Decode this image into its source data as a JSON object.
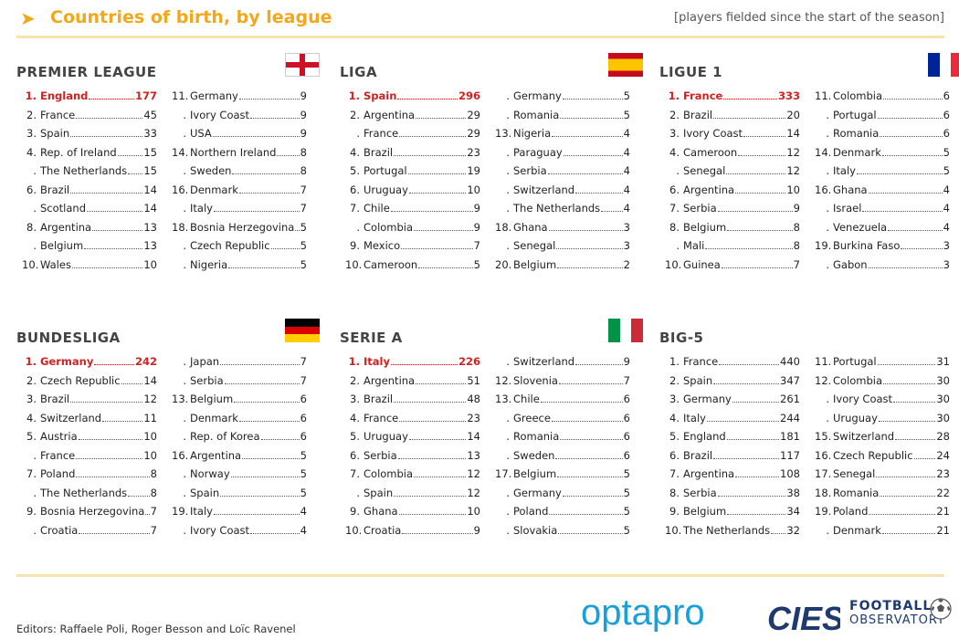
{
  "header": {
    "title": "Countries of birth, by league",
    "subtitle": "[players fielded since the start of the season]"
  },
  "footer": {
    "editors": "Editors: Raffaele Poli, Roger Besson and Loïc Ravenel",
    "opta_logo": "optapro",
    "cies_logo": "CIES",
    "fo_line1": "FOOTBALL",
    "fo_line2": "OBSERVATORY"
  },
  "chart_data": [
    {
      "type": "table",
      "title": "PREMIER LEAGUE",
      "flag": "england",
      "rows": [
        {
          "rank": "1.",
          "country": "England",
          "value": 177,
          "highlight": true
        },
        {
          "rank": "2.",
          "country": "France",
          "value": 45
        },
        {
          "rank": "3.",
          "country": "Spain",
          "value": 33
        },
        {
          "rank": "4.",
          "country": "Rep. of Ireland",
          "value": 15
        },
        {
          "rank": ".",
          "country": "The Netherlands",
          "value": 15
        },
        {
          "rank": "6.",
          "country": "Brazil",
          "value": 14
        },
        {
          "rank": ".",
          "country": "Scotland",
          "value": 14
        },
        {
          "rank": "8.",
          "country": "Argentina",
          "value": 13
        },
        {
          "rank": ".",
          "country": "Belgium",
          "value": 13
        },
        {
          "rank": "10.",
          "country": "Wales",
          "value": 10
        },
        {
          "rank": "11.",
          "country": "Germany",
          "value": 9
        },
        {
          "rank": ".",
          "country": "Ivory Coast",
          "value": 9
        },
        {
          "rank": ".",
          "country": "USA",
          "value": 9
        },
        {
          "rank": "14.",
          "country": "Northern Ireland",
          "value": 8
        },
        {
          "rank": ".",
          "country": "Sweden",
          "value": 8
        },
        {
          "rank": "16.",
          "country": "Denmark",
          "value": 7
        },
        {
          "rank": ".",
          "country": "Italy",
          "value": 7
        },
        {
          "rank": "18.",
          "country": "Bosnia Herzegovina",
          "value": 5
        },
        {
          "rank": ".",
          "country": "Czech Republic",
          "value": 5
        },
        {
          "rank": ".",
          "country": "Nigeria",
          "value": 5
        }
      ]
    },
    {
      "type": "table",
      "title": "LIGA",
      "flag": "spain",
      "rows": [
        {
          "rank": "1.",
          "country": "Spain",
          "value": 296,
          "highlight": true
        },
        {
          "rank": "2.",
          "country": "Argentina",
          "value": 29
        },
        {
          "rank": ".",
          "country": "France",
          "value": 29
        },
        {
          "rank": "4.",
          "country": "Brazil",
          "value": 23
        },
        {
          "rank": "5.",
          "country": "Portugal",
          "value": 19
        },
        {
          "rank": "6.",
          "country": "Uruguay",
          "value": 10
        },
        {
          "rank": "7.",
          "country": "Chile",
          "value": 9
        },
        {
          "rank": ".",
          "country": "Colombia",
          "value": 9
        },
        {
          "rank": "9.",
          "country": "Mexico",
          "value": 7
        },
        {
          "rank": "10.",
          "country": "Cameroon",
          "value": 5
        },
        {
          "rank": ".",
          "country": "Germany",
          "value": 5
        },
        {
          "rank": ".",
          "country": "Romania",
          "value": 5
        },
        {
          "rank": "13.",
          "country": "Nigeria",
          "value": 4
        },
        {
          "rank": ".",
          "country": "Paraguay",
          "value": 4
        },
        {
          "rank": ".",
          "country": "Serbia",
          "value": 4
        },
        {
          "rank": ".",
          "country": "Switzerland",
          "value": 4
        },
        {
          "rank": ".",
          "country": "The Netherlands",
          "value": 4
        },
        {
          "rank": "18.",
          "country": "Ghana",
          "value": 3
        },
        {
          "rank": ".",
          "country": "Senegal",
          "value": 3
        },
        {
          "rank": "20.",
          "country": "Belgium",
          "value": 2
        }
      ]
    },
    {
      "type": "table",
      "title": "LIGUE 1",
      "flag": "france",
      "rows": [
        {
          "rank": "1.",
          "country": "France",
          "value": 333,
          "highlight": true
        },
        {
          "rank": "2.",
          "country": "Brazil",
          "value": 20
        },
        {
          "rank": "3.",
          "country": "Ivory Coast",
          "value": 14
        },
        {
          "rank": "4.",
          "country": "Cameroon",
          "value": 12
        },
        {
          "rank": ".",
          "country": "Senegal",
          "value": 12
        },
        {
          "rank": "6.",
          "country": "Argentina",
          "value": 10
        },
        {
          "rank": "7.",
          "country": "Serbia",
          "value": 9
        },
        {
          "rank": "8.",
          "country": "Belgium",
          "value": 8
        },
        {
          "rank": ".",
          "country": "Mali",
          "value": 8
        },
        {
          "rank": "10.",
          "country": "Guinea",
          "value": 7
        },
        {
          "rank": "11.",
          "country": "Colombia",
          "value": 6
        },
        {
          "rank": ".",
          "country": "Portugal",
          "value": 6
        },
        {
          "rank": ".",
          "country": "Romania",
          "value": 6
        },
        {
          "rank": "14.",
          "country": "Denmark",
          "value": 5
        },
        {
          "rank": ".",
          "country": "Italy",
          "value": 5
        },
        {
          "rank": "16.",
          "country": "Ghana",
          "value": 4
        },
        {
          "rank": ".",
          "country": "Israel",
          "value": 4
        },
        {
          "rank": ".",
          "country": "Venezuela",
          "value": 4
        },
        {
          "rank": "19.",
          "country": "Burkina Faso",
          "value": 3
        },
        {
          "rank": ".",
          "country": "Gabon",
          "value": 3
        }
      ]
    },
    {
      "type": "table",
      "title": "BUNDESLIGA",
      "flag": "germany",
      "rows": [
        {
          "rank": "1.",
          "country": "Germany",
          "value": 242,
          "highlight": true
        },
        {
          "rank": "2.",
          "country": "Czech Republic",
          "value": 14
        },
        {
          "rank": "3.",
          "country": "Brazil",
          "value": 12
        },
        {
          "rank": "4.",
          "country": "Switzerland",
          "value": 11
        },
        {
          "rank": "5.",
          "country": "Austria",
          "value": 10
        },
        {
          "rank": ".",
          "country": "France",
          "value": 10
        },
        {
          "rank": "7.",
          "country": "Poland",
          "value": 8
        },
        {
          "rank": ".",
          "country": "The Netherlands",
          "value": 8
        },
        {
          "rank": "9.",
          "country": "Bosnia Herzegovina",
          "value": 7
        },
        {
          "rank": ".",
          "country": "Croatia",
          "value": 7
        },
        {
          "rank": ".",
          "country": "Japan",
          "value": 7
        },
        {
          "rank": ".",
          "country": "Serbia",
          "value": 7
        },
        {
          "rank": "13.",
          "country": "Belgium",
          "value": 6
        },
        {
          "rank": ".",
          "country": "Denmark",
          "value": 6
        },
        {
          "rank": ".",
          "country": "Rep. of Korea",
          "value": 6
        },
        {
          "rank": "16.",
          "country": "Argentina",
          "value": 5
        },
        {
          "rank": ".",
          "country": "Norway",
          "value": 5
        },
        {
          "rank": ".",
          "country": "Spain",
          "value": 5
        },
        {
          "rank": "19.",
          "country": "Italy",
          "value": 4
        },
        {
          "rank": ".",
          "country": "Ivory Coast",
          "value": 4
        }
      ]
    },
    {
      "type": "table",
      "title": "SERIE A",
      "flag": "italy",
      "rows": [
        {
          "rank": "1.",
          "country": "Italy",
          "value": 226,
          "highlight": true
        },
        {
          "rank": "2.",
          "country": "Argentina",
          "value": 51
        },
        {
          "rank": "3.",
          "country": "Brazil",
          "value": 48
        },
        {
          "rank": "4.",
          "country": "France",
          "value": 23
        },
        {
          "rank": "5.",
          "country": "Uruguay",
          "value": 14
        },
        {
          "rank": "6.",
          "country": "Serbia",
          "value": 13
        },
        {
          "rank": "7.",
          "country": "Colombia",
          "value": 12
        },
        {
          "rank": ".",
          "country": "Spain",
          "value": 12
        },
        {
          "rank": "9.",
          "country": "Ghana",
          "value": 10
        },
        {
          "rank": "10.",
          "country": "Croatia",
          "value": 9
        },
        {
          "rank": ".",
          "country": "Switzerland",
          "value": 9
        },
        {
          "rank": "12.",
          "country": "Slovenia",
          "value": 7
        },
        {
          "rank": "13.",
          "country": "Chile",
          "value": 6
        },
        {
          "rank": ".",
          "country": "Greece",
          "value": 6
        },
        {
          "rank": ".",
          "country": "Romania",
          "value": 6
        },
        {
          "rank": ".",
          "country": "Sweden",
          "value": 6
        },
        {
          "rank": "17.",
          "country": "Belgium",
          "value": 5
        },
        {
          "rank": ".",
          "country": "Germany",
          "value": 5
        },
        {
          "rank": ".",
          "country": "Poland",
          "value": 5
        },
        {
          "rank": ".",
          "country": "Slovakia",
          "value": 5
        }
      ]
    },
    {
      "type": "table",
      "title": "BIG-5",
      "flag": "",
      "rows": [
        {
          "rank": "1.",
          "country": "France",
          "value": 440
        },
        {
          "rank": "2.",
          "country": "Spain",
          "value": 347
        },
        {
          "rank": "3.",
          "country": "Germany",
          "value": 261
        },
        {
          "rank": "4.",
          "country": "Italy",
          "value": 244
        },
        {
          "rank": "5.",
          "country": "England",
          "value": 181
        },
        {
          "rank": "6.",
          "country": "Brazil",
          "value": 117
        },
        {
          "rank": "7.",
          "country": "Argentina",
          "value": 108
        },
        {
          "rank": "8.",
          "country": "Serbia",
          "value": 38
        },
        {
          "rank": "9.",
          "country": "Belgium",
          "value": 34
        },
        {
          "rank": "10.",
          "country": "The Netherlands",
          "value": 32
        },
        {
          "rank": "11.",
          "country": "Portugal",
          "value": 31
        },
        {
          "rank": "12.",
          "country": "Colombia",
          "value": 30
        },
        {
          "rank": ".",
          "country": "Ivory Coast",
          "value": 30
        },
        {
          "rank": ".",
          "country": "Uruguay",
          "value": 30
        },
        {
          "rank": "15.",
          "country": "Switzerland",
          "value": 28
        },
        {
          "rank": "16.",
          "country": "Czech Republic",
          "value": 24
        },
        {
          "rank": "17.",
          "country": "Senegal",
          "value": 23
        },
        {
          "rank": "18.",
          "country": "Romania",
          "value": 22
        },
        {
          "rank": "19.",
          "country": "Poland",
          "value": 21
        },
        {
          "rank": ".",
          "country": "Denmark",
          "value": 21
        }
      ]
    }
  ]
}
